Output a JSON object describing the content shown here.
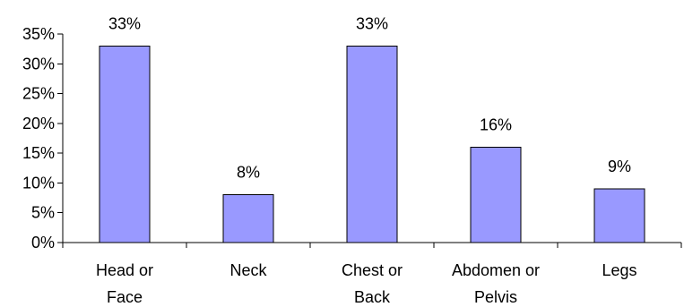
{
  "chart_data": {
    "type": "bar",
    "categories": [
      [
        "Head or",
        "Face"
      ],
      [
        "Neck"
      ],
      [
        "Chest or",
        "Back"
      ],
      [
        "Abdomen or",
        "Pelvis"
      ],
      [
        "Legs"
      ]
    ],
    "values": [
      33,
      8,
      33,
      16,
      9
    ],
    "data_labels": [
      "33%",
      "8%",
      "33%",
      "16%",
      "9%"
    ],
    "y_ticks": [
      0,
      5,
      10,
      15,
      20,
      25,
      30,
      35
    ],
    "y_tick_labels": [
      "0%",
      "5%",
      "10%",
      "15%",
      "20%",
      "25%",
      "30%",
      "35%"
    ],
    "ylim": [
      0,
      35
    ],
    "title": "",
    "xlabel": "",
    "ylabel": "",
    "grid": false,
    "legend": "none",
    "bar_color": "#9999ff"
  }
}
